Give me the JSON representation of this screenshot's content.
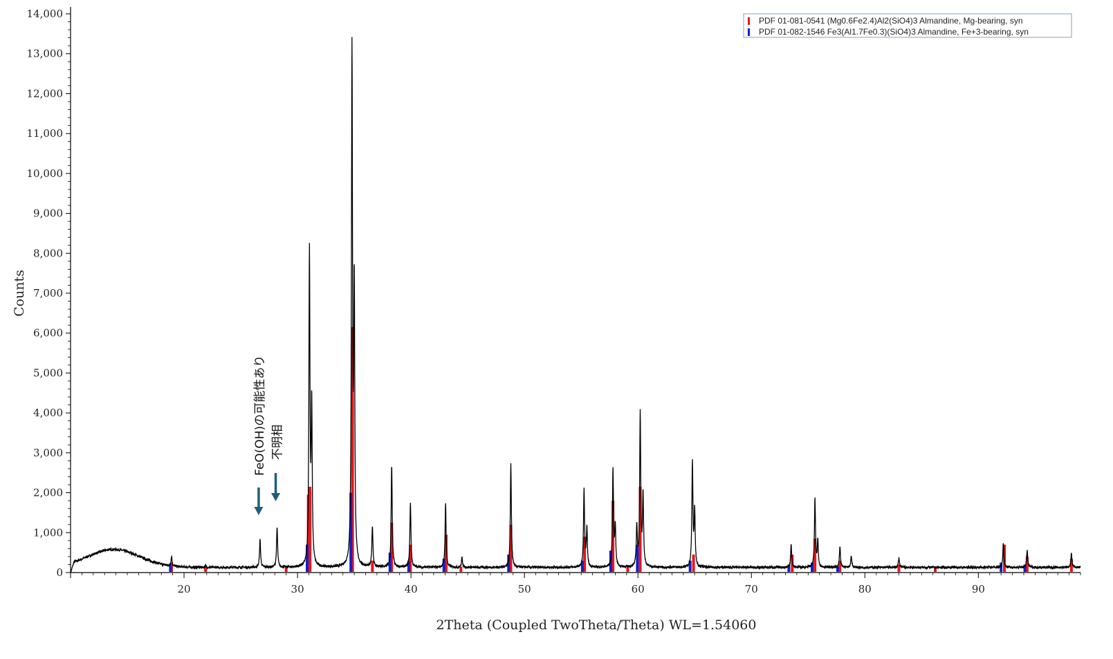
{
  "chart_data": {
    "type": "line",
    "xlabel": "2Theta (Coupled TwoTheta/Theta) WL=1.54060",
    "ylabel": "Counts",
    "xlim": [
      10,
      99
    ],
    "ylim": [
      0,
      14000
    ],
    "x_ticks": [
      20,
      30,
      40,
      50,
      60,
      70,
      80,
      90
    ],
    "x_tick_labels": [
      "20",
      "30",
      "40",
      "50",
      "60",
      "70",
      "80",
      "90"
    ],
    "y_ticks": [
      0,
      1000,
      2000,
      3000,
      4000,
      5000,
      6000,
      7000,
      8000,
      9000,
      10000,
      11000,
      12000,
      13000,
      14000
    ],
    "y_tick_labels": [
      "0",
      "1,000",
      "2,000",
      "3,000",
      "4,000",
      "5,000",
      "6,000",
      "7,000",
      "8,000",
      "9,000",
      "10,000",
      "11,000",
      "12,000",
      "13,000",
      "14,000"
    ],
    "grid": false,
    "legend_position": "top-right",
    "legend": [
      {
        "label": "PDF 01-081-0541 (Mg0.6Fe2.4)Al2(SiO4)3 Almandine, Mg-bearing, syn",
        "color": "#e8141c"
      },
      {
        "label": "PDF 01-082-1546 Fe3(Al1.7Fe0.3)(SiO4)3 Almandine, Fe+3-bearing, syn",
        "color": "#1020c8"
      }
    ],
    "background": {
      "hump_center": 13.8,
      "hump_width": 3.2,
      "hump_height": 450,
      "baseline": 130,
      "noise": 60
    },
    "peaks": [
      {
        "x": 18.9,
        "y": 380
      },
      {
        "x": 21.9,
        "y": 170
      },
      {
        "x": 26.7,
        "y": 820
      },
      {
        "x": 28.2,
        "y": 1130
      },
      {
        "x": 31.05,
        "y": 7980
      },
      {
        "x": 31.25,
        "y": 4050
      },
      {
        "x": 34.8,
        "y": 12950
      },
      {
        "x": 35.0,
        "y": 6950
      },
      {
        "x": 36.6,
        "y": 1160
      },
      {
        "x": 38.3,
        "y": 2680
      },
      {
        "x": 39.95,
        "y": 1750
      },
      {
        "x": 43.05,
        "y": 1720
      },
      {
        "x": 44.5,
        "y": 380
      },
      {
        "x": 48.8,
        "y": 2720
      },
      {
        "x": 55.25,
        "y": 2060
      },
      {
        "x": 55.5,
        "y": 1100
      },
      {
        "x": 57.8,
        "y": 2540
      },
      {
        "x": 58.0,
        "y": 1150
      },
      {
        "x": 59.9,
        "y": 1150
      },
      {
        "x": 60.2,
        "y": 3970
      },
      {
        "x": 60.45,
        "y": 1950
      },
      {
        "x": 64.8,
        "y": 2760
      },
      {
        "x": 65.0,
        "y": 1500
      },
      {
        "x": 73.5,
        "y": 700
      },
      {
        "x": 75.6,
        "y": 1830
      },
      {
        "x": 75.85,
        "y": 790
      },
      {
        "x": 77.8,
        "y": 630
      },
      {
        "x": 78.8,
        "y": 420
      },
      {
        "x": 83.0,
        "y": 370
      },
      {
        "x": 92.2,
        "y": 750
      },
      {
        "x": 94.3,
        "y": 570
      },
      {
        "x": 98.2,
        "y": 480
      }
    ],
    "reference_red": [
      {
        "x": 18.9,
        "y": 250
      },
      {
        "x": 21.9,
        "y": 160
      },
      {
        "x": 29.0,
        "y": 120
      },
      {
        "x": 30.95,
        "y": 1950
      },
      {
        "x": 31.1,
        "y": 2150
      },
      {
        "x": 34.85,
        "y": 6150
      },
      {
        "x": 36.6,
        "y": 300
      },
      {
        "x": 38.3,
        "y": 1250
      },
      {
        "x": 39.95,
        "y": 700
      },
      {
        "x": 43.1,
        "y": 950
      },
      {
        "x": 44.4,
        "y": 150
      },
      {
        "x": 48.8,
        "y": 1200
      },
      {
        "x": 55.3,
        "y": 900
      },
      {
        "x": 57.8,
        "y": 1800
      },
      {
        "x": 59.1,
        "y": 150
      },
      {
        "x": 60.2,
        "y": 2150
      },
      {
        "x": 64.9,
        "y": 450
      },
      {
        "x": 73.6,
        "y": 450
      },
      {
        "x": 75.6,
        "y": 850
      },
      {
        "x": 77.8,
        "y": 300
      },
      {
        "x": 83.0,
        "y": 200
      },
      {
        "x": 86.2,
        "y": 150
      },
      {
        "x": 92.3,
        "y": 700
      },
      {
        "x": 94.3,
        "y": 400
      },
      {
        "x": 98.2,
        "y": 350
      }
    ],
    "reference_blue": [
      {
        "x": 18.8,
        "y": 200
      },
      {
        "x": 30.85,
        "y": 700
      },
      {
        "x": 34.7,
        "y": 2000
      },
      {
        "x": 38.15,
        "y": 500
      },
      {
        "x": 39.8,
        "y": 300
      },
      {
        "x": 42.9,
        "y": 350
      },
      {
        "x": 48.6,
        "y": 450
      },
      {
        "x": 55.1,
        "y": 300
      },
      {
        "x": 57.6,
        "y": 550
      },
      {
        "x": 59.95,
        "y": 700
      },
      {
        "x": 64.6,
        "y": 300
      },
      {
        "x": 73.3,
        "y": 200
      },
      {
        "x": 75.35,
        "y": 250
      },
      {
        "x": 77.6,
        "y": 150
      },
      {
        "x": 92.0,
        "y": 250
      },
      {
        "x": 94.1,
        "y": 200
      }
    ],
    "annotations": [
      {
        "text": "FeO(OH)の可能性あり",
        "x": 26.7,
        "orientation": "vertical"
      },
      {
        "text": "不明相",
        "x": 28.2,
        "orientation": "vertical"
      }
    ]
  },
  "arrow_color": "#1f5f7a"
}
